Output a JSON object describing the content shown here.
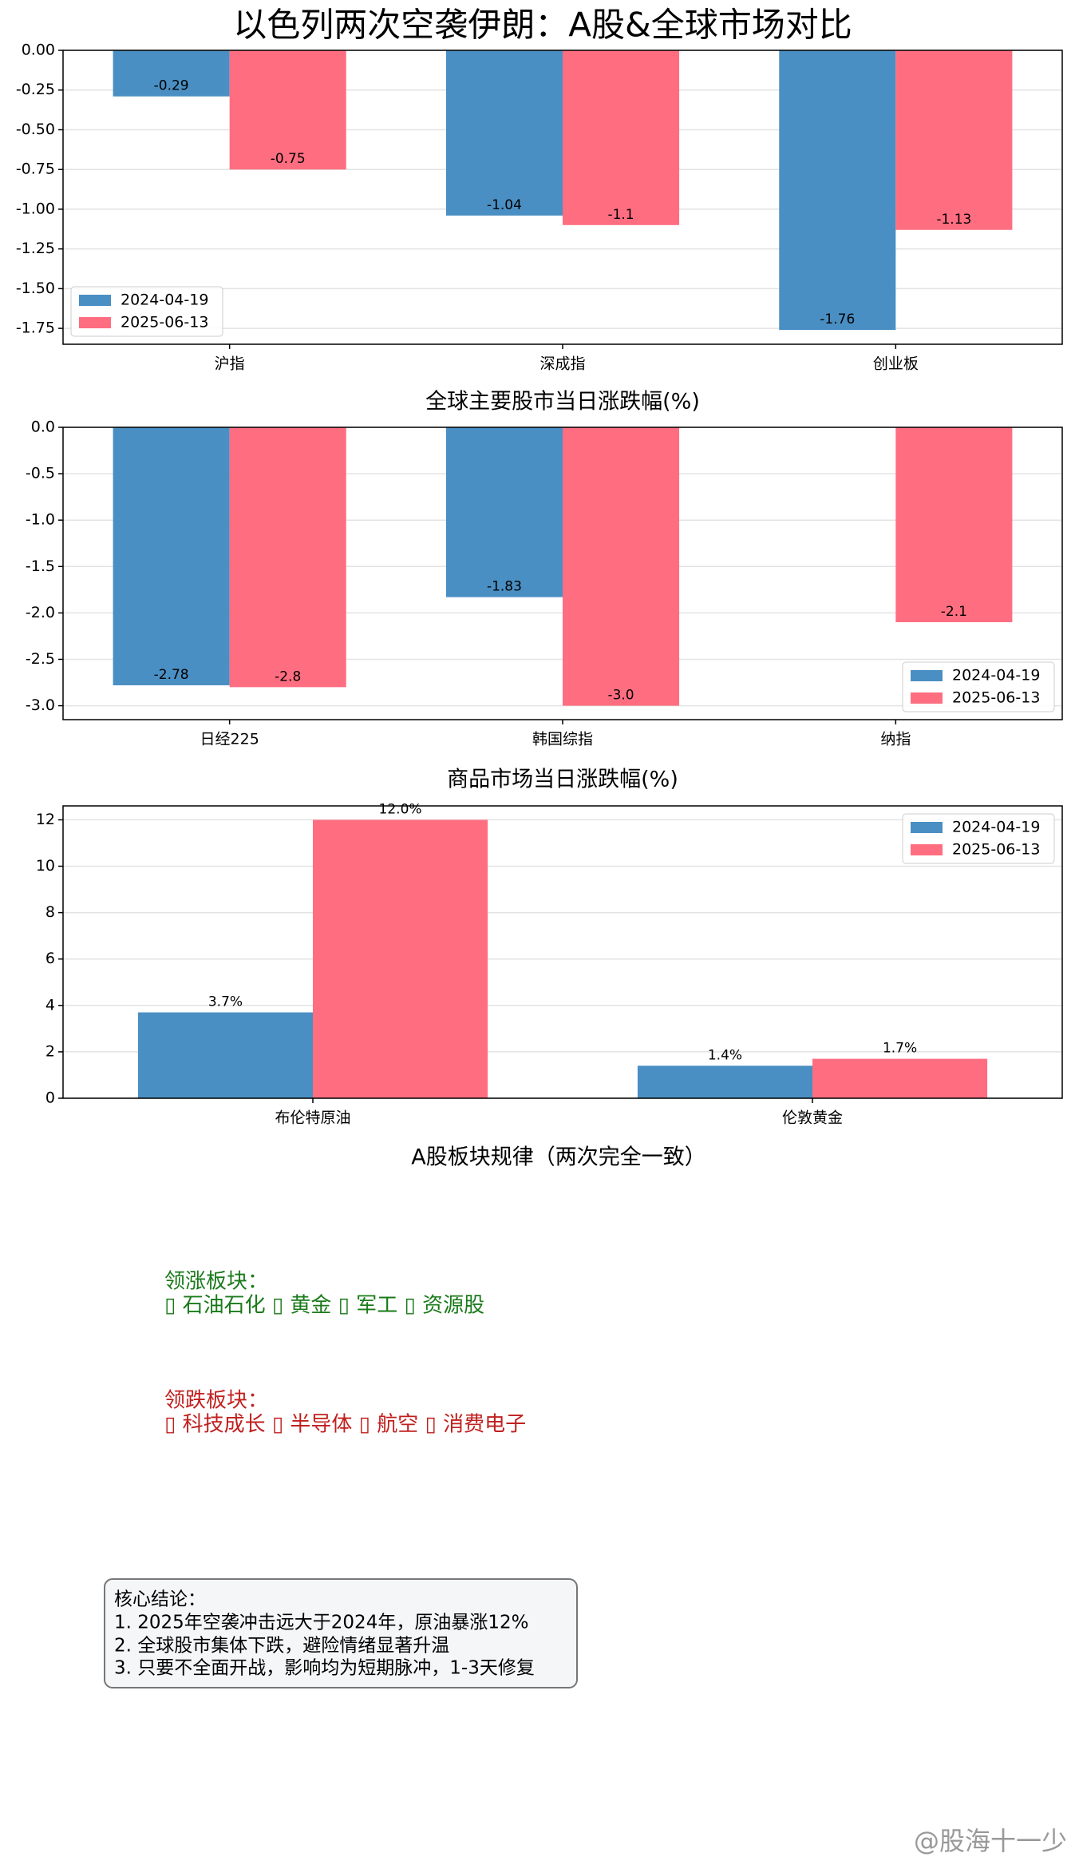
{
  "title": "以色列两次空袭伊朗：A股&全球市场对比",
  "chart_data": [
    {
      "type": "bar",
      "categories": [
        "沪指",
        "深成指",
        "创业板"
      ],
      "series": [
        {
          "name": "2024-04-19",
          "color": "#4a8fc3",
          "values": [
            -0.29,
            -1.04,
            -1.76
          ]
        },
        {
          "name": "2025-06-13",
          "color": "#ff6e80",
          "values": [
            -0.75,
            -1.1,
            -1.13
          ]
        }
      ],
      "ylim": [
        -1.85,
        0
      ],
      "yticks": [
        {
          "value": 0,
          "label": "0.00"
        },
        {
          "value": -0.25,
          "label": "-0.25"
        },
        {
          "value": -0.5,
          "label": "-0.50"
        },
        {
          "value": -0.75,
          "label": "-0.75"
        },
        {
          "value": -1,
          "label": "-1.00"
        },
        {
          "value": -1.25,
          "label": "-1.25"
        },
        {
          "value": -1.5,
          "label": "-1.50"
        },
        {
          "value": -1.75,
          "label": "-1.75"
        }
      ],
      "grid": true,
      "legend": "lower-left"
    },
    {
      "type": "bar",
      "title": "全球主要股市当日涨跌幅(%)",
      "categories": [
        "日经225",
        "韩国综指",
        "纳指"
      ],
      "series": [
        {
          "name": "2024-04-19",
          "color": "#4a8fc3",
          "values": [
            -2.78,
            -1.83,
            null
          ]
        },
        {
          "name": "2025-06-13",
          "color": "#ff6e80",
          "values": [
            -2.8,
            -3.0,
            -2.1
          ],
          "value_labels": [
            "-2.8",
            "-3.0",
            "-2.1"
          ]
        }
      ],
      "ylim": [
        -3.15,
        0
      ],
      "yticks": [
        {
          "value": 0,
          "label": "0.0"
        },
        {
          "value": -0.5,
          "label": "-0.5"
        },
        {
          "value": -1,
          "label": "-1.0"
        },
        {
          "value": -1.5,
          "label": "-1.5"
        },
        {
          "value": -2,
          "label": "-2.0"
        },
        {
          "value": -2.5,
          "label": "-2.5"
        },
        {
          "value": -3,
          "label": "-3.0"
        }
      ],
      "grid": true,
      "legend": "lower-right"
    },
    {
      "type": "bar",
      "title": "商品市场当日涨跌幅(%)",
      "categories": [
        "布伦特原油",
        "伦敦黄金"
      ],
      "series": [
        {
          "name": "2024-04-19",
          "color": "#4a8fc3",
          "values": [
            3.7,
            1.4
          ],
          "value_labels": [
            "3.7%",
            "1.4%"
          ]
        },
        {
          "name": "2025-06-13",
          "color": "#ff6e80",
          "values": [
            12.0,
            1.7
          ],
          "value_labels": [
            "12.0%",
            "1.7%"
          ]
        }
      ],
      "ylim": [
        0,
        12.6
      ],
      "yticks": [
        0,
        2,
        4,
        6,
        8,
        10,
        12
      ],
      "grid": true,
      "legend": "upper-right"
    }
  ],
  "sectors": {
    "title": "A股板块规律（两次完全一致）",
    "rise_label": "领涨板块：",
    "rise_items": "▯ 石油石化 ▯ 黄金 ▯ 军工 ▯ 资源股",
    "fall_label": "领跌板块：",
    "fall_items": "▯ 科技成长 ▯ 半导体 ▯ 航空 ▯ 消费电子"
  },
  "conclusion": {
    "title": "核心结论：",
    "lines": [
      "1. 2025年空袭冲击远大于2024年，原油暴涨12%",
      "2. 全球股市集体下跌，避险情绪显著升温",
      "3. 只要不全面开战，影响均为短期脉冲，1-3天修复"
    ]
  },
  "watermark": "@股海十一少"
}
